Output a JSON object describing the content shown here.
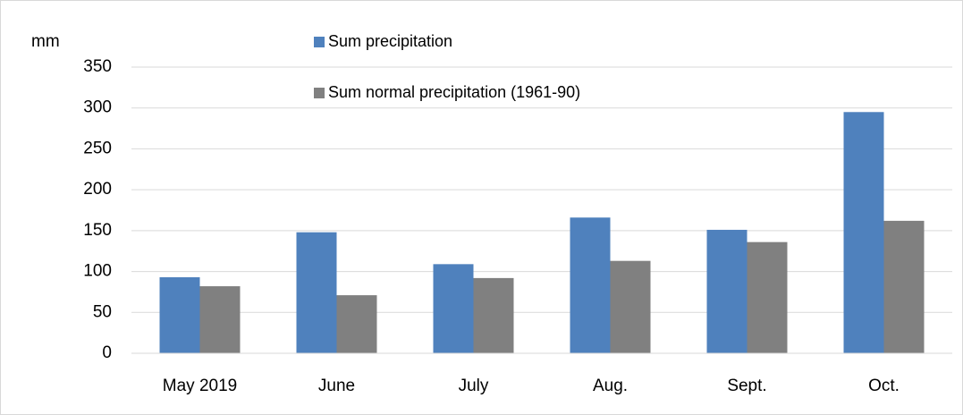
{
  "chart_data": {
    "type": "bar",
    "y_label": "mm",
    "categories": [
      "May 2019",
      "June",
      "July",
      "Aug.",
      "Sept.",
      "Oct."
    ],
    "series": [
      {
        "name": "Sum precipitation",
        "color": "#4f81bd",
        "values": [
          93,
          148,
          109,
          166,
          151,
          295
        ]
      },
      {
        "name": "Sum normal precipitation (1961-90)",
        "color": "#808080",
        "values": [
          82,
          71,
          92,
          113,
          136,
          162
        ]
      }
    ],
    "ylim": [
      0,
      350
    ],
    "yticks": [
      0,
      50,
      100,
      150,
      200,
      250,
      300,
      350
    ],
    "grid": true,
    "legend": "top"
  }
}
